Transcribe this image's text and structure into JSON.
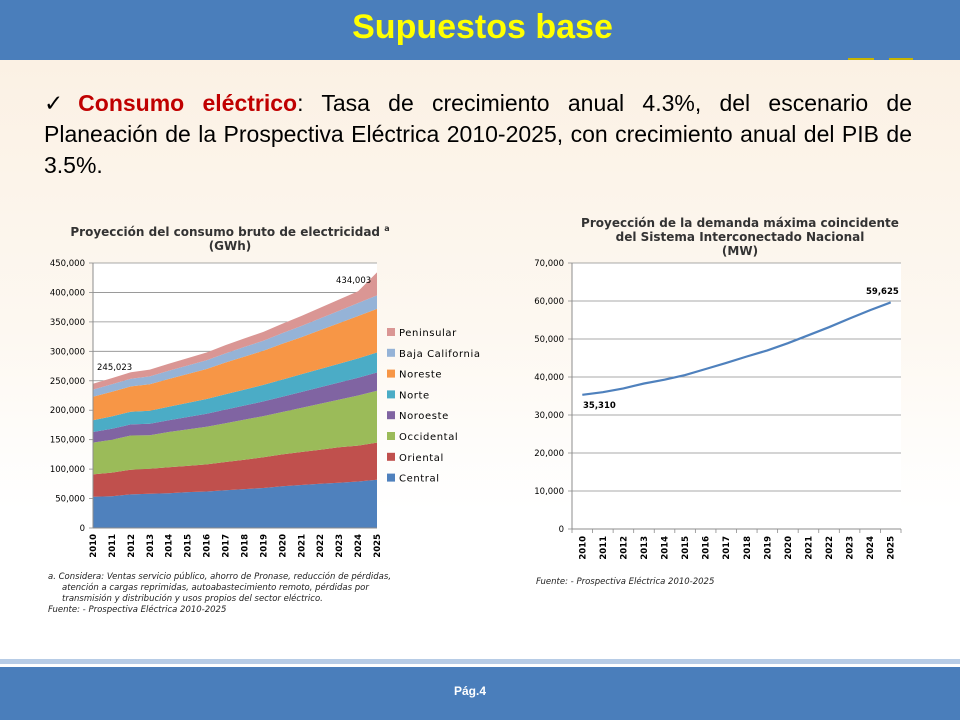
{
  "slide": {
    "title": "Supuestos base",
    "page": "Pág.4"
  },
  "bullet": {
    "check": "✓",
    "term": "Consumo eléctrico",
    "text": ": Tasa de crecimiento anual 4.3%, del escenario de Planeación de la Prospectiva Eléctrica 2010-2025, con crecimiento anual del PIB de 3.5%."
  },
  "left_chart": {
    "title_line1": "Proyección del consumo bruto de electricidad ",
    "title_sup": "a",
    "title_line2": "(GWh)",
    "note_line1": "a.   Considera: Ventas servicio público, ahorro de Pronase, reducción de pérdidas,",
    "note_line2": "atención a cargas reprimidas, autoabastecimiento remoto, pérdidas por",
    "note_line3": "transmisión y distribución y usos propios del sector eléctrico.",
    "source": "Fuente: - Prospectiva Eléctrica 2010-2025"
  },
  "right_chart": {
    "title_line1": "Proyección de la demanda máxima coincidente",
    "title_line2": "del Sistema Interconectado Nacional",
    "title_line3": "(MW)",
    "source": "Fuente: - Prospectiva Eléctrica 2010-2025"
  },
  "chart_data": [
    {
      "type": "area",
      "stacked": true,
      "title": "Proyección del consumo bruto de electricidad a (GWh)",
      "x": [
        "2010",
        "2011",
        "2012",
        "2013",
        "2014",
        "2015",
        "2016",
        "2017",
        "2018",
        "2019",
        "2020",
        "2021",
        "2022",
        "2023",
        "2024",
        "2025"
      ],
      "ylim": [
        0,
        450000
      ],
      "yticks": [
        0,
        50000,
        100000,
        150000,
        200000,
        250000,
        300000,
        350000,
        400000,
        450000
      ],
      "ytick_labels": [
        "0",
        "50,000",
        "100,000",
        "150,000",
        "200,000",
        "250,000",
        "300,000",
        "350,000",
        "400,000",
        "450,000"
      ],
      "grid": true,
      "legend_position": "right",
      "series": [
        {
          "name": "Central",
          "color": "#4f81bd",
          "values": [
            53000,
            54000,
            57000,
            58000,
            59000,
            61000,
            62000,
            64000,
            66000,
            68000,
            71000,
            73000,
            75000,
            77000,
            79000,
            82000
          ]
        },
        {
          "name": "Oriental",
          "color": "#c0504d",
          "values": [
            38000,
            40000,
            42000,
            42500,
            44000,
            44500,
            46000,
            48000,
            50000,
            52000,
            54000,
            56000,
            58000,
            60000,
            61000,
            63000
          ]
        },
        {
          "name": "Occidental",
          "color": "#9bbb59",
          "values": [
            54000,
            56000,
            58000,
            57000,
            60000,
            62000,
            64000,
            66000,
            68000,
            70000,
            72000,
            75000,
            78000,
            81000,
            85000,
            88000
          ]
        },
        {
          "name": "Noroeste",
          "color": "#8064a2",
          "values": [
            18000,
            18500,
            19000,
            19500,
            20000,
            21000,
            22000,
            23000,
            24000,
            25000,
            26000,
            27000,
            28000,
            29000,
            30000,
            31000
          ]
        },
        {
          "name": "Norte",
          "color": "#4bacc6",
          "values": [
            20000,
            21000,
            21500,
            22000,
            23000,
            24000,
            25000,
            26000,
            27000,
            28000,
            29000,
            30000,
            31000,
            32000,
            33000,
            34000
          ]
        },
        {
          "name": "Noreste",
          "color": "#f79646",
          "values": [
            40000,
            42000,
            43000,
            45000,
            47000,
            49000,
            51000,
            54000,
            56000,
            58000,
            61000,
            63000,
            66000,
            69000,
            72000,
            74000
          ]
        },
        {
          "name": "Baja California",
          "color": "#95b3d7",
          "values": [
            12000,
            12500,
            13000,
            13500,
            14000,
            14500,
            15000,
            15500,
            16500,
            17000,
            18000,
            19000,
            20000,
            21000,
            22000,
            23000
          ]
        },
        {
          "name": "Peninsular",
          "color": "#da9694",
          "values": [
            10000,
            10500,
            11000,
            11500,
            12000,
            12500,
            13000,
            14000,
            14500,
            15000,
            16000,
            17000,
            18000,
            19000,
            20000,
            39003
          ]
        }
      ],
      "annotations": [
        {
          "x": "2010",
          "label": "245,023",
          "value": 245023
        },
        {
          "x": "2025",
          "label": "434,003",
          "value": 434003
        }
      ]
    },
    {
      "type": "line",
      "title": "Proyección de la demanda máxima coincidente del Sistema Interconectado Nacional (MW)",
      "x": [
        "2010",
        "2011",
        "2012",
        "2013",
        "2014",
        "2015",
        "2016",
        "2017",
        "2018",
        "2019",
        "2020",
        "2021",
        "2022",
        "2023",
        "2024",
        "2025"
      ],
      "ylim": [
        0,
        70000
      ],
      "yticks": [
        0,
        10000,
        20000,
        30000,
        40000,
        50000,
        60000,
        70000
      ],
      "ytick_labels": [
        "0",
        "10,000",
        "20,000",
        "30,000",
        "40,000",
        "50,000",
        "60,000",
        "70,000"
      ],
      "grid": true,
      "series": [
        {
          "color": "#4f81bd",
          "values": [
            35310,
            36000,
            37000,
            38300,
            39300,
            40500,
            42100,
            43700,
            45400,
            47000,
            48900,
            51000,
            53100,
            55400,
            57600,
            59625
          ]
        }
      ],
      "annotations": [
        {
          "x": "2010",
          "label": "35,310",
          "value": 35310
        },
        {
          "x": "2025",
          "label": "59,625",
          "value": 59625
        }
      ]
    }
  ]
}
